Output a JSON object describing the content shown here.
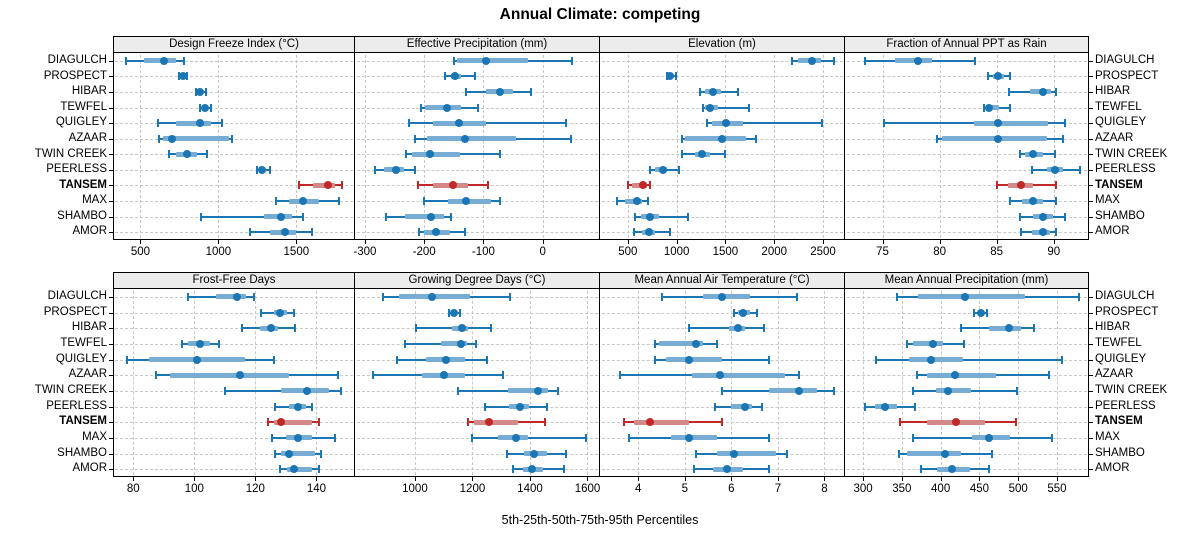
{
  "title": "Annual Climate: competing",
  "caption": "5th-25th-50th-75th-95th Percentiles",
  "stations": [
    "DIAGULCH",
    "PROSPECT",
    "HIBAR",
    "TEWFEL",
    "QUIGLEY",
    "AZAAR",
    "TWIN CREEK",
    "PEERLESS",
    "TANSEM",
    "MAX",
    "SHAMBO",
    "AMOR"
  ],
  "highlight_station": "TANSEM",
  "colors": {
    "series": "#1b76b4",
    "series_band": "#77add4",
    "highlight": "#c0282a",
    "highlight_band": "#d48989",
    "strip_bg": "#ececec",
    "gridline": "#c8c8c8",
    "panel_border": "#000000",
    "text": "#000000"
  },
  "chart_data": {
    "type": "dotplot",
    "subtype": "percentile-interval-dotplot",
    "percentiles": [
      5,
      25,
      50,
      75,
      95
    ],
    "row_order_top_to_bottom": [
      "DIAGULCH",
      "PROSPECT",
      "HIBAR",
      "TEWFEL",
      "QUIGLEY",
      "AZAAR",
      "TWIN CREEK",
      "PEERLESS",
      "TANSEM",
      "MAX",
      "SHAMBO",
      "AMOR"
    ],
    "grid": "dashed",
    "layout": "2 rows x 4 columns of panels",
    "panels": [
      {
        "title": "Design Freeze Index (°C)",
        "ticks": [
          500,
          1000,
          1500
        ],
        "domain": [
          330,
          1870
        ],
        "values": [
          [
            410,
            525,
            650,
            727,
            780
          ],
          [
            750,
            760,
            770,
            785,
            800
          ],
          [
            855,
            870,
            885,
            900,
            918
          ],
          [
            880,
            900,
            917,
            935,
            950
          ],
          [
            610,
            725,
            880,
            950,
            1025
          ],
          [
            620,
            645,
            705,
            1065,
            1090
          ],
          [
            685,
            725,
            797,
            865,
            928
          ],
          [
            1245,
            1262,
            1281,
            1300,
            1330
          ],
          [
            1520,
            1605,
            1700,
            1750,
            1795
          ],
          [
            1370,
            1455,
            1540,
            1645,
            1775
          ],
          [
            890,
            1290,
            1400,
            1475,
            1540
          ],
          [
            1200,
            1330,
            1425,
            1500,
            1600
          ]
        ]
      },
      {
        "title": "Effective Precipitation (mm)",
        "ticks": [
          -300,
          -200,
          -100,
          0
        ],
        "domain": [
          -315,
          95
        ],
        "values": [
          [
            -150,
            -145,
            -95,
            -25,
            50
          ],
          [
            -165,
            -155,
            -148,
            -137,
            -115
          ],
          [
            -130,
            -95,
            -72,
            -50,
            -20
          ],
          [
            -205,
            -198,
            -162,
            -137,
            -110
          ],
          [
            -225,
            -185,
            -141,
            -95,
            40
          ],
          [
            -215,
            -195,
            -131,
            -45,
            47
          ],
          [
            -230,
            -220,
            -190,
            -140,
            -72
          ],
          [
            -283,
            -267,
            -248,
            -234,
            -215
          ],
          [
            -210,
            -185,
            -152,
            -126,
            -92
          ],
          [
            -200,
            -160,
            -129,
            -88,
            -72
          ],
          [
            -265,
            -233,
            -188,
            -167,
            -154
          ],
          [
            -208,
            -200,
            -180,
            -157,
            -131
          ]
        ]
      },
      {
        "title": "Elevation (m)",
        "ticks": [
          500,
          1000,
          1500,
          2000,
          2500
        ],
        "domain": [
          225,
          2715
        ],
        "values": [
          [
            2180,
            2240,
            2390,
            2475,
            2610
          ],
          [
            902,
            917,
            934,
            955,
            993
          ],
          [
            1240,
            1290,
            1375,
            1450,
            1630
          ],
          [
            1273,
            1290,
            1340,
            1425,
            1745
          ],
          [
            1310,
            1360,
            1510,
            1680,
            2490
          ],
          [
            1055,
            1090,
            1460,
            1715,
            1815
          ],
          [
            1055,
            1190,
            1255,
            1340,
            1495
          ],
          [
            730,
            781,
            856,
            900,
            1020
          ],
          [
            505,
            545,
            655,
            695,
            730
          ],
          [
            390,
            475,
            595,
            645,
            710
          ],
          [
            578,
            630,
            730,
            815,
            1120
          ],
          [
            560,
            645,
            714,
            780,
            935
          ]
        ]
      },
      {
        "title": "Fraction of Annual PPT as Rain",
        "ticks": [
          75,
          80,
          85,
          90
        ],
        "domain": [
          71.8,
          93
        ],
        "values": [
          [
            73.5,
            76.1,
            78.1,
            79.3,
            83.1
          ],
          [
            84.2,
            84.7,
            85.1,
            85.6,
            86.2
          ],
          [
            86.1,
            87.9,
            89.1,
            89.8,
            90.2
          ],
          [
            83.9,
            84.1,
            84.3,
            85.2,
            86.2
          ],
          [
            75.1,
            83.0,
            85.1,
            89.5,
            91.0
          ],
          [
            79.8,
            80.2,
            85.1,
            89.4,
            90.8
          ],
          [
            87.0,
            87.5,
            88.2,
            89.1,
            90.1
          ],
          [
            88.1,
            89.4,
            90.1,
            90.8,
            92.3
          ],
          [
            85.0,
            86.0,
            87.1,
            88.2,
            90.2
          ],
          [
            86.2,
            87.2,
            88.2,
            89.1,
            90.2
          ],
          [
            87.0,
            88.2,
            89.1,
            89.9,
            91.0
          ],
          [
            87.1,
            88.1,
            89.1,
            89.7,
            90.2
          ]
        ]
      },
      {
        "title": "Frost-Free Days",
        "ticks": [
          80,
          100,
          120,
          140
        ],
        "domain": [
          73.7,
          152.3
        ],
        "values": [
          [
            98,
            107,
            114,
            117,
            119.5
          ],
          [
            122,
            126,
            128,
            130.5,
            132.5
          ],
          [
            115.5,
            121.5,
            125,
            127.5,
            133
          ],
          [
            96,
            98,
            102,
            105,
            108
          ],
          [
            78,
            85,
            101,
            116.5,
            126
          ],
          [
            87.5,
            92,
            115,
            131,
            147
          ],
          [
            110,
            128.5,
            137,
            144,
            148
          ],
          [
            126.5,
            131,
            134,
            136.5,
            138.5
          ],
          [
            124,
            126,
            128.5,
            138.5,
            141
          ],
          [
            125.5,
            130,
            134,
            138.5,
            146
          ],
          [
            126.5,
            128.5,
            131,
            139.5,
            141.5
          ],
          [
            128,
            130.5,
            132.5,
            138.5,
            141
          ]
        ]
      },
      {
        "title": "Growing Degree Days (°C)",
        "ticks": [
          1000,
          1200,
          1400,
          1600
        ],
        "domain": [
          795,
          1640
        ],
        "values": [
          [
            890,
            945,
            1060,
            1190,
            1330
          ],
          [
            1120,
            1128,
            1136,
            1145,
            1155
          ],
          [
            1005,
            1128,
            1163,
            1186,
            1263
          ],
          [
            965,
            1090,
            1160,
            1180,
            1212
          ],
          [
            936,
            1040,
            1109,
            1174,
            1252
          ],
          [
            853,
            1025,
            1100,
            1174,
            1306
          ],
          [
            1148,
            1324,
            1427,
            1461,
            1498
          ],
          [
            1243,
            1327,
            1367,
            1398,
            1458
          ],
          [
            1186,
            1207,
            1258,
            1358,
            1452
          ],
          [
            1200,
            1289,
            1352,
            1392,
            1595
          ],
          [
            1320,
            1380,
            1415,
            1460,
            1525
          ],
          [
            1340,
            1375,
            1407,
            1444,
            1520
          ]
        ]
      },
      {
        "title": "Mean Annual Air Temperature (°C)",
        "ticks": [
          4,
          5,
          6,
          7,
          8
        ],
        "domain": [
          3.2,
          8.42
        ],
        "values": [
          [
            4.5,
            5.4,
            5.8,
            6.4,
            7.4
          ],
          [
            6.05,
            6.15,
            6.25,
            6.4,
            6.55
          ],
          [
            5.1,
            5.95,
            6.15,
            6.3,
            6.7
          ],
          [
            4.35,
            4.45,
            5.25,
            5.4,
            5.7
          ],
          [
            4.35,
            4.6,
            5.1,
            5.8,
            6.8
          ],
          [
            3.6,
            5.15,
            5.75,
            7.15,
            7.45
          ],
          [
            5.8,
            6.8,
            7.45,
            7.85,
            8.2
          ],
          [
            5.65,
            6.0,
            6.3,
            6.45,
            6.65
          ],
          [
            3.7,
            3.9,
            4.25,
            5.1,
            5.8
          ],
          [
            3.8,
            4.7,
            5.1,
            5.7,
            6.8
          ],
          [
            5.25,
            5.7,
            6.05,
            6.95,
            7.2
          ],
          [
            5.2,
            5.6,
            5.9,
            6.25,
            6.8
          ]
        ]
      },
      {
        "title": "Mean Annual Precipitation (mm)",
        "ticks": [
          300,
          350,
          400,
          450,
          500,
          550
        ],
        "domain": [
          278,
          590
        ],
        "values": [
          [
            344,
            371,
            431,
            509,
            578
          ],
          [
            443,
            448,
            452,
            456,
            460
          ],
          [
            426,
            463,
            488,
            503,
            520
          ],
          [
            356,
            365,
            390,
            403,
            430
          ],
          [
            317,
            359,
            387,
            429,
            556
          ],
          [
            369,
            382,
            418,
            472,
            540
          ],
          [
            364,
            394,
            410,
            439,
            499
          ],
          [
            303,
            316,
            328,
            344,
            367
          ],
          [
            347,
            383,
            420,
            457,
            497
          ],
          [
            364,
            440,
            463,
            490,
            543
          ],
          [
            346,
            356,
            406,
            426,
            466
          ],
          [
            375,
            395,
            415,
            438,
            462
          ]
        ]
      }
    ]
  }
}
